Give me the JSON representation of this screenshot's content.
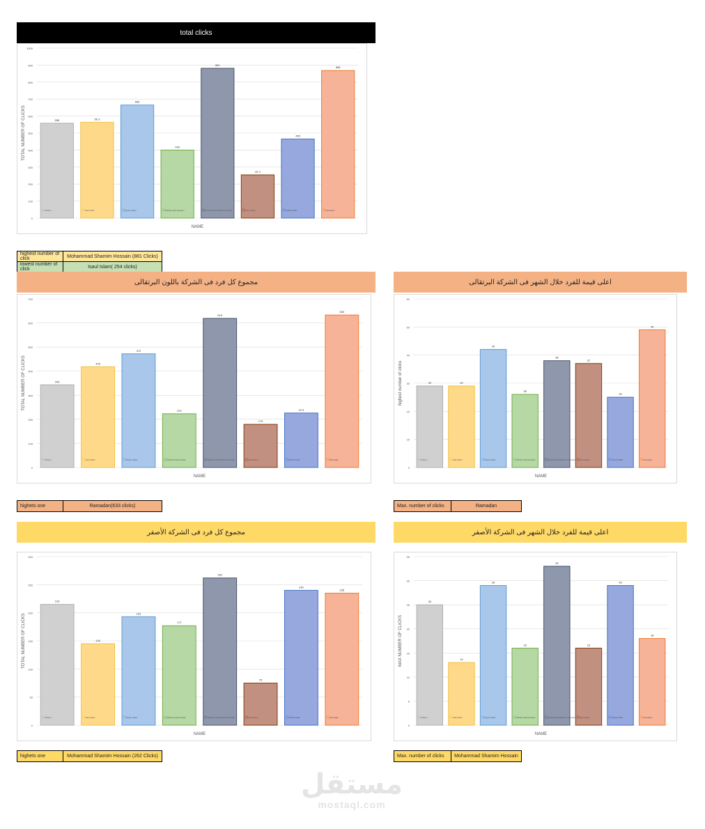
{
  "colors": {
    "bar_fill": [
      "#d0d0d0",
      "#ffd98a",
      "#a9c7ea",
      "#b5d8a5",
      "#8f97ad",
      "#c19081",
      "#96a8de",
      "#f6b397"
    ],
    "bar_stroke": [
      "#b0b0b0",
      "#f0c040",
      "#5b9bd5",
      "#70ad47",
      "#44546a",
      "#843c0c",
      "#4472c4",
      "#ed7d31"
    ],
    "grid": "#d9d9d9"
  },
  "watermark": {
    "arabic": "مستقل",
    "latin": "mostaql.com"
  },
  "charts": [
    {
      "id": "c1",
      "band_title": "total clicks",
      "band_style": "black"
    },
    {
      "id": "c2",
      "band_title": "مجموع كل فرد فى الشركة باللون البرتقالى",
      "band_style": "orange"
    },
    {
      "id": "c3",
      "band_title": "اعلى قيمة للفرد خلال الشهر فى الشركة البرتقالى",
      "band_style": "orange"
    },
    {
      "id": "c4",
      "band_title": "مجموع كل فرد فى الشركة الأصفر",
      "band_style": "yellow"
    },
    {
      "id": "c5",
      "band_title": "اعلى قيمة للفرد خلال الشهر فى الشركة الأصفر",
      "band_style": "yellow"
    }
  ],
  "chart_data": [
    {
      "type": "bar",
      "title": "total clicks",
      "xlabel": "NAME",
      "ylabel": "TOTAL NUMBER OF CLICKS",
      "ylim": [
        0,
        1000
      ],
      "yticks": [
        0,
        100,
        200,
        300,
        400,
        500,
        600,
        700,
        800,
        900,
        1000
      ],
      "categories": [
        "Sharmi",
        "Abul Islam",
        "Riyaz sultan",
        "Mohammad Hossain",
        "Mohammad Shamim Hossain",
        "Isaul Islam",
        "Nahid Uddin",
        "Ramadan"
      ],
      "values": [
        558,
        563,
        665,
        400,
        881,
        254,
        465,
        868
      ],
      "data_labels": [
        "558",
        "56 3",
        "665",
        "400",
        "881",
        "25 4",
        "465",
        "868"
      ]
    },
    {
      "type": "bar",
      "title": "مجموع كل فرد فى الشركة باللون البرتقالى",
      "xlabel": "NAME",
      "ylabel": "TOTAL NUMBER OF CLICKS",
      "ylim": [
        0,
        700
      ],
      "yticks": [
        0,
        100,
        200,
        300,
        400,
        500,
        600,
        700
      ],
      "categories": [
        "Sharmi",
        "Abul Islam",
        "Riyaz sultan",
        "Mohammad Hossain",
        "Mohammad Shamim Hossain",
        "Isaul Islam",
        "Nahid Uddin",
        "Ramadan"
      ],
      "values": [
        343,
        418,
        472,
        223,
        619,
        179,
        226,
        633
      ],
      "data_labels": [
        "343",
        "418",
        "472",
        "223",
        "619",
        "179",
        "22 6",
        "633"
      ]
    },
    {
      "type": "bar",
      "title": "اعلى قيمة للفرد خلال الشهر فى الشركة البرتقالى",
      "xlabel": "NAME",
      "ylabel": "highest number of clicks",
      "ylim": [
        0,
        60
      ],
      "yticks": [
        0,
        10,
        20,
        30,
        40,
        50,
        60
      ],
      "categories": [
        "Sharmi",
        "Abul Islam",
        "Riyaz sultan",
        "Mohammad Hossain",
        "Mohammad Shamim Hossain",
        "Isaul Islam",
        "Nahid Uddin",
        "Ramadan"
      ],
      "values": [
        29,
        29,
        42,
        26,
        38,
        37,
        25,
        49
      ],
      "data_labels": [
        "29",
        "29",
        "42",
        "26",
        "38",
        "37",
        "25",
        "49"
      ]
    },
    {
      "type": "bar",
      "title": "مجموع كل فرد فى الشركة الأصفر",
      "xlabel": "NAME",
      "ylabel": "TOTAL NUMBER OF CLICKS",
      "ylim": [
        0,
        300
      ],
      "yticks": [
        0,
        50,
        100,
        150,
        200,
        250,
        300
      ],
      "categories": [
        "Sharmi",
        "Abul Islam",
        "Riyaz sultan",
        "Mohammad Hossain",
        "Mohammad Shamim Hossain",
        "Isaul Islam",
        "Nahid Uddin",
        "Ramadan"
      ],
      "values": [
        215,
        145,
        193,
        177,
        262,
        75,
        240,
        235
      ],
      "data_labels": [
        "215",
        "145",
        "193",
        "177",
        "262",
        "75",
        "240",
        "235"
      ]
    },
    {
      "type": "bar",
      "title": "اعلى قيمة للفرد خلال الشهر فى الشركة الأصفر",
      "xlabel": "NAME",
      "ylabel": "MAX NUMBER OF CLICKS",
      "ylim": [
        0,
        35
      ],
      "yticks": [
        0,
        5,
        10,
        15,
        20,
        25,
        30,
        35
      ],
      "categories": [
        "Sharmi",
        "Abul Islam",
        "Riyaz sultan",
        "Mohammad Hossain",
        "Mohammad Shamim Hossain",
        "Isaul Islam",
        "Nahid Uddin",
        "Ramadan"
      ],
      "values": [
        25,
        13,
        29,
        16,
        33,
        16,
        29,
        18
      ],
      "data_labels": [
        "25",
        "13",
        "29",
        "16",
        "33",
        "16",
        "29",
        "18"
      ]
    }
  ],
  "info": {
    "c1_highest_label": "highest number of click",
    "c1_highest_value": "Mohammad Shamim Hossain (881 Clicks)",
    "c1_lowest_label": "lowest number of click",
    "c1_lowest_value": "Isaul Islam( 254 clicks)",
    "c2_label": "highets one",
    "c2_value": "Ramadan(633 clicks)",
    "c3_label": "Max. number of clicks",
    "c3_value": "Ramadan",
    "c4_label": "highets one",
    "c4_value": "Mohammad Shamim Hossain (262 Clicks)",
    "c5_label": "Max. number of clicks",
    "c5_value": "Mohammad Shamim Hossain"
  }
}
